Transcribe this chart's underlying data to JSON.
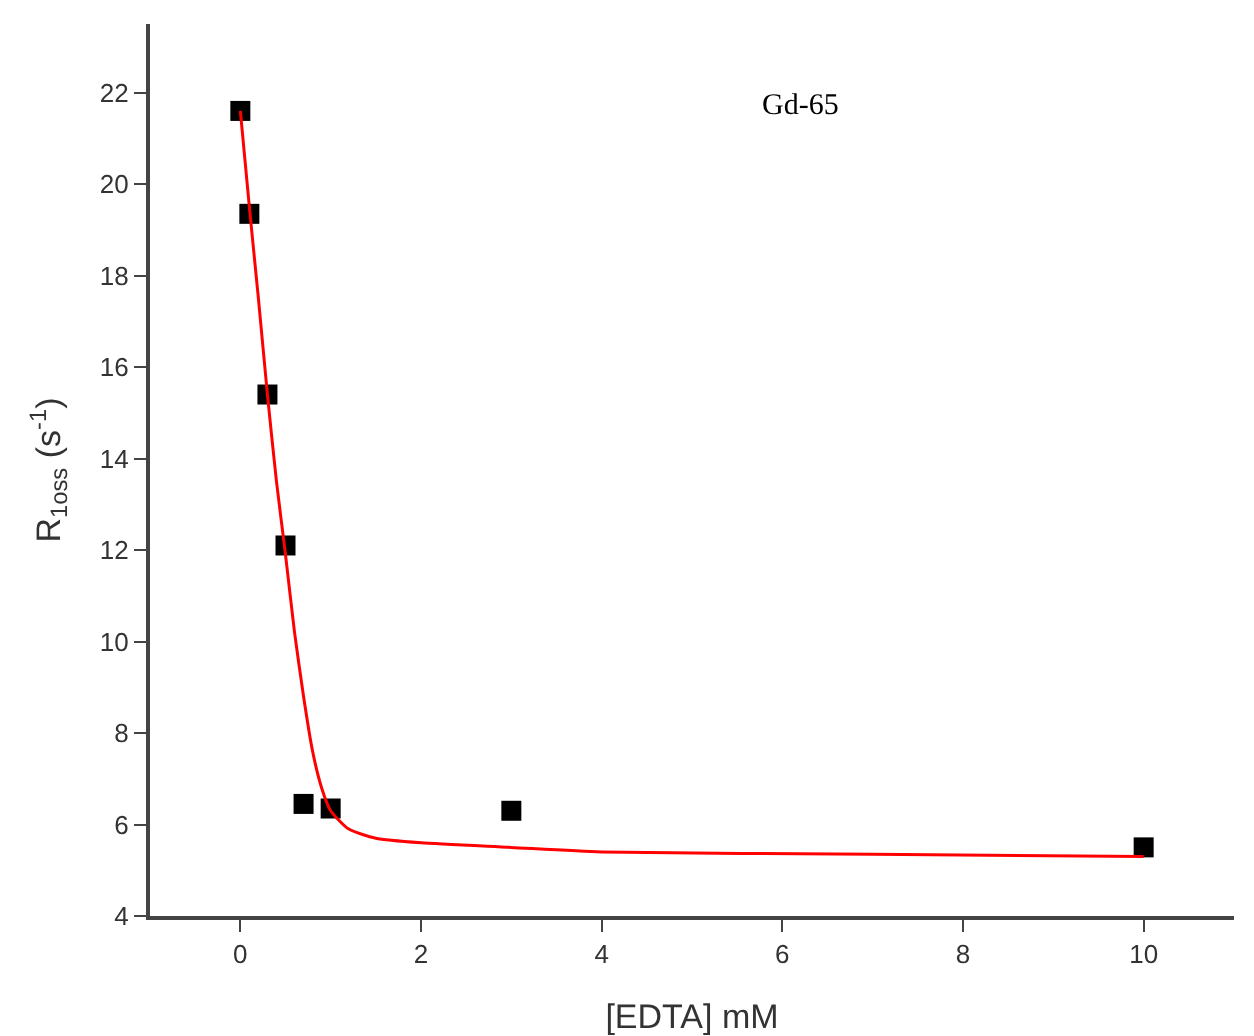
{
  "chart_data": {
    "type": "scatter",
    "xlabel": "[EDTA] mM",
    "ylabel": "R$_{1oss}$ (s$^{-1}$)",
    "annotations": [
      "Gd-65"
    ],
    "xlim": [
      -1,
      11
    ],
    "xticks": [
      0,
      2,
      4,
      6,
      8,
      10
    ],
    "ylim": [
      4,
      23.5
    ],
    "yticks": [
      4,
      6,
      8,
      10,
      12,
      14,
      16,
      18,
      20,
      22
    ],
    "grid": false,
    "series": [
      {
        "marker": "square",
        "color": "#000000",
        "x": [
          0,
          0.1,
          0.3,
          0.5,
          0.7,
          1,
          3,
          10
        ],
        "values": [
          21.6,
          19.35,
          15.4,
          12.1,
          6.45,
          6.35,
          6.3,
          5.5
        ]
      },
      {
        "type": "line",
        "color": "#ff0000",
        "x": [
          0,
          0.1,
          0.2,
          0.3,
          0.4,
          0.5,
          0.6,
          0.7,
          0.8,
          0.9,
          1,
          1.2,
          1.5,
          2,
          3,
          4,
          7,
          10
        ],
        "values": [
          21.6,
          19.5,
          17.5,
          15.4,
          13.5,
          11.9,
          10.2,
          8.8,
          7.6,
          6.8,
          6.3,
          5.9,
          5.7,
          5.6,
          5.5,
          5.4,
          5.35,
          5.3
        ]
      }
    ]
  }
}
